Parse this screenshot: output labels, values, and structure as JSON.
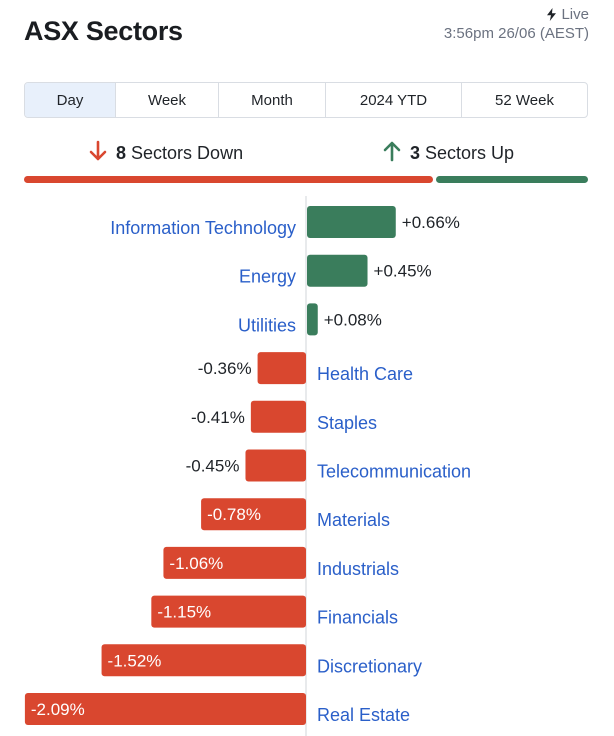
{
  "header": {
    "title": "ASX Sectors",
    "live_label": "Live",
    "timestamp": "3:56pm 26/06 (AEST)"
  },
  "tabs": [
    {
      "label": "Day",
      "active": true
    },
    {
      "label": "Week",
      "active": false
    },
    {
      "label": "Month",
      "active": false
    },
    {
      "label": "2024 YTD",
      "active": false
    },
    {
      "label": "52 Week",
      "active": false
    }
  ],
  "summary": {
    "down_count": "8",
    "down_label": "Sectors Down",
    "up_count": "3",
    "up_label": "Sectors Up"
  },
  "colors": {
    "positive": "#3a7d5c",
    "negative": "#d9472f",
    "link": "#2a5fc9"
  },
  "chart_data": {
    "type": "bar",
    "orientation": "horizontal-diverging",
    "categories": [
      "Information Technology",
      "Energy",
      "Utilities",
      "Health Care",
      "Staples",
      "Telecommunication",
      "Materials",
      "Industrials",
      "Financials",
      "Discretionary",
      "Real Estate"
    ],
    "values": [
      0.66,
      0.45,
      0.08,
      -0.36,
      -0.41,
      -0.45,
      -0.78,
      -1.06,
      -1.15,
      -1.52,
      -2.09
    ],
    "labels": [
      "+0.66%",
      "+0.45%",
      "+0.08%",
      "-0.36%",
      "-0.41%",
      "-0.45%",
      "-0.78%",
      "-1.06%",
      "-1.15%",
      "-1.52%",
      "-2.09%"
    ],
    "unit": "%",
    "xlim": [
      -2.09,
      0.66
    ]
  }
}
